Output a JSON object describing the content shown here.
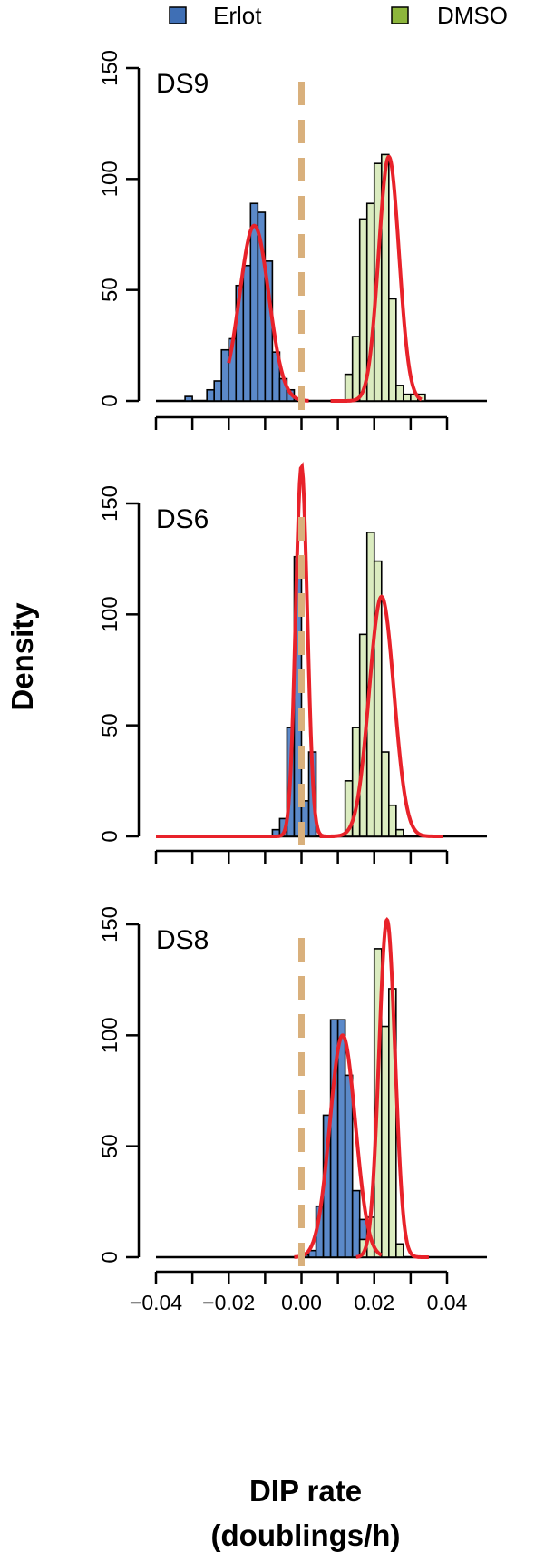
{
  "legend": {
    "items": [
      {
        "label": "Erlot",
        "color": "#3f6fb5"
      },
      {
        "label": "DMSO",
        "color": "#8db63c"
      }
    ]
  },
  "axes": {
    "ylabel": "Density",
    "xlabel_line1": "DIP rate",
    "xlabel_line2": "(doublings/h)"
  },
  "colors": {
    "erlot_fill": "#5b89c9",
    "dmso_fill": "#dbecc0",
    "fit_curve": "#e8222a",
    "zero_line": "#d9b07c",
    "bar_stroke": "#000000"
  },
  "chart_data": [
    {
      "type": "bar",
      "panel_label": "DS9",
      "xlim": [
        -0.04,
        0.04
      ],
      "ylim": [
        0,
        150
      ],
      "yticks": [
        0,
        50,
        100,
        150
      ],
      "xtick_labels": [],
      "bin_width": 0.002,
      "erlot": {
        "bin_starts": [
          -0.032,
          -0.03,
          -0.028,
          -0.026,
          -0.024,
          -0.022,
          -0.02,
          -0.018,
          -0.016,
          -0.014,
          -0.012,
          -0.01,
          -0.008,
          -0.006,
          -0.004,
          -0.002
        ],
        "values": [
          2,
          0,
          0,
          5,
          9,
          23,
          28,
          52,
          61,
          89,
          85,
          63,
          22,
          10,
          5,
          1
        ]
      },
      "dmso": {
        "bin_starts": [
          0.012,
          0.014,
          0.016,
          0.018,
          0.02,
          0.022,
          0.024,
          0.026,
          0.028,
          0.03,
          0.032
        ],
        "values": [
          12,
          29,
          82,
          89,
          107,
          111,
          46,
          7,
          3,
          3,
          3
        ]
      },
      "fits": [
        {
          "mean": -0.013,
          "sd": 0.004,
          "peak": 79,
          "range": [
            -0.02,
            0.002
          ]
        },
        {
          "mean": 0.024,
          "sd": 0.0028,
          "peak": 110,
          "range": [
            0.008,
            0.033
          ]
        }
      ]
    },
    {
      "type": "bar",
      "panel_label": "DS6",
      "xlim": [
        -0.04,
        0.04
      ],
      "ylim": [
        0,
        150
      ],
      "yticks": [
        0,
        50,
        100,
        150
      ],
      "xtick_labels": [],
      "bin_width": 0.002,
      "erlot": {
        "bin_starts": [
          -0.008,
          -0.006,
          -0.004,
          -0.002,
          0.0,
          0.002
        ],
        "values": [
          3,
          8,
          49,
          126,
          16,
          38
        ]
      },
      "dmso": {
        "bin_starts": [
          0.012,
          0.014,
          0.016,
          0.018,
          0.02,
          0.022,
          0.024,
          0.026
        ],
        "values": [
          25,
          49,
          91,
          137,
          124,
          38,
          14,
          3
        ]
      },
      "fits": [
        {
          "mean": 0.0,
          "sd": 0.0016,
          "peak": 167,
          "range": [
            -0.04,
            0.009
          ]
        },
        {
          "mean": 0.022,
          "sd": 0.0034,
          "peak": 108,
          "range": [
            0.005,
            0.039
          ]
        }
      ]
    },
    {
      "type": "bar",
      "panel_label": "DS8",
      "xlim": [
        -0.04,
        0.04
      ],
      "ylim": [
        0,
        150
      ],
      "yticks": [
        0,
        50,
        100,
        150
      ],
      "xtick_labels": [
        "−0.04",
        "−0.02",
        "0.00",
        "0.02",
        "0.04"
      ],
      "bin_width": 0.002,
      "erlot": {
        "bin_starts": [
          0.0,
          0.002,
          0.004,
          0.006,
          0.008,
          0.01,
          0.012,
          0.014,
          0.016,
          0.018,
          0.02
        ],
        "values": [
          1,
          3,
          23,
          64,
          107,
          107,
          82,
          30,
          17,
          5,
          2
        ]
      },
      "dmso": {
        "bin_starts": [
          0.016,
          0.018,
          0.02,
          0.022,
          0.024,
          0.026
        ],
        "values": [
          8,
          18,
          139,
          104,
          121,
          6
        ]
      },
      "fits": [
        {
          "mean": 0.0113,
          "sd": 0.0035,
          "peak": 100,
          "range": [
            -0.002,
            0.022
          ]
        },
        {
          "mean": 0.0235,
          "sd": 0.0022,
          "peak": 152,
          "range": [
            0.015,
            0.035
          ]
        }
      ]
    }
  ]
}
